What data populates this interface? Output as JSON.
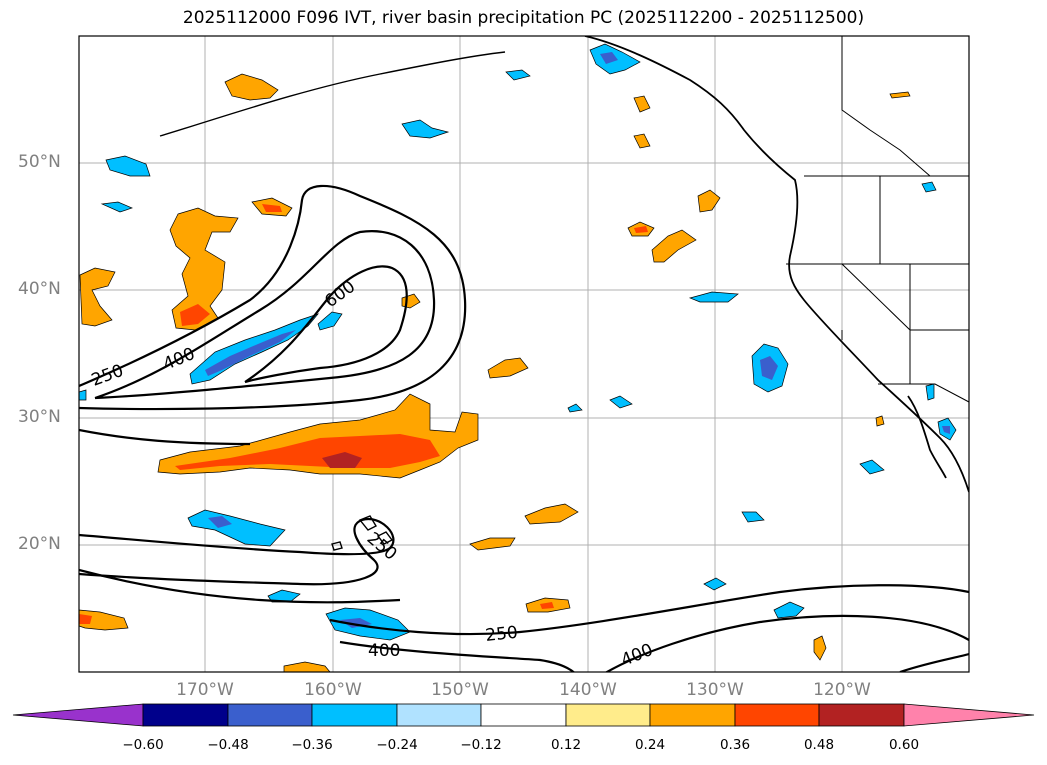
{
  "title": "2025112000 F096 IVT, river basin precipitation PC (2025112200 - 2025112500)",
  "map": {
    "lat_labels": [
      "50°N",
      "40°N",
      "30°N",
      "20°N"
    ],
    "lon_labels": [
      "170°W",
      "160°W",
      "150°W",
      "140°W",
      "130°W",
      "120°W"
    ],
    "ivt_contour_labels": [
      "250",
      "400",
      "600",
      "250",
      "400",
      "400",
      "250"
    ],
    "colors": {
      "land_border": "#000000",
      "gridline": "#b0b0b0",
      "positive_low": "#ffa500",
      "positive_mid": "#ff4500",
      "positive_high": "#b22222",
      "negative_low": "#00bfff",
      "negative_mid": "#3a5fcd"
    }
  },
  "colorbar": {
    "colors": [
      "#9932cc",
      "#00008b",
      "#3a5fcd",
      "#00bfff",
      "#b0e2ff",
      "#ffffff",
      "#ffec8b",
      "#ffa500",
      "#ff4500",
      "#b22222",
      "#ff82ab"
    ],
    "tick_labels": [
      "−0.60",
      "−0.48",
      "−0.36",
      "−0.24",
      "−0.12",
      "0.12",
      "0.24",
      "0.36",
      "0.48",
      "0.60"
    ]
  }
}
